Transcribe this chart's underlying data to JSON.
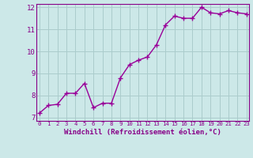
{
  "x": [
    0,
    1,
    2,
    3,
    4,
    5,
    6,
    7,
    8,
    9,
    10,
    11,
    12,
    13,
    14,
    15,
    16,
    17,
    18,
    19,
    20,
    21,
    22,
    23
  ],
  "y": [
    7.2,
    7.55,
    7.6,
    8.1,
    8.1,
    8.55,
    7.45,
    7.65,
    7.65,
    8.8,
    9.4,
    9.6,
    9.75,
    10.3,
    11.2,
    11.6,
    11.5,
    11.5,
    12.0,
    11.75,
    11.7,
    11.85,
    11.75,
    11.7
  ],
  "color": "#990099",
  "bg_color": "#cce8e8",
  "grid_color": "#aacccc",
  "xlim": [
    -0.3,
    23.3
  ],
  "ylim": [
    6.85,
    12.15
  ],
  "yticks": [
    7,
    8,
    9,
    10,
    11,
    12
  ],
  "xticks": [
    0,
    1,
    2,
    3,
    4,
    5,
    6,
    7,
    8,
    9,
    10,
    11,
    12,
    13,
    14,
    15,
    16,
    17,
    18,
    19,
    20,
    21,
    22,
    23
  ],
  "xlabel": "Windchill (Refroidissement éolien,°C)",
  "xlabel_color": "#880088",
  "tick_color": "#880088",
  "spine_color": "#880088",
  "marker": "+",
  "linewidth": 1.0,
  "markersize": 4,
  "markeredgewidth": 1.0
}
